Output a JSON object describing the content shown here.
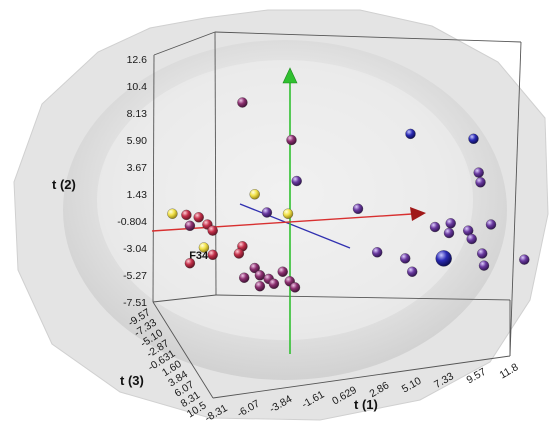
{
  "chart_data": {
    "type": "scatter",
    "projection": "3d",
    "axes": {
      "x": {
        "label": "t (1)",
        "ticks": [
          "-8.31",
          "-6.07",
          "-3.84",
          "-1.61",
          "0.629",
          "2.86",
          "5.10",
          "7.33",
          "9.57",
          "11.8"
        ]
      },
      "y": {
        "label": "t (2)",
        "ticks": [
          "-7.51",
          "-5.27",
          "-3.04",
          "-0.804",
          "1.43",
          "3.67",
          "5.90",
          "8.13",
          "10.4",
          "12.6"
        ]
      },
      "z": {
        "label": "t (3)",
        "ticks": [
          "-9.57",
          "-7.33",
          "-5.10",
          "-2.87",
          "-0.631",
          "1.60",
          "3.84",
          "6.07",
          "8.31",
          "10.5"
        ]
      }
    },
    "ellipsoid": true,
    "colors": {
      "yellow": "#f2e24a",
      "red": "#c4304a",
      "magenta": "#8c3070",
      "purple": "#6a3aa0",
      "blue": "#2b2bb5",
      "x_axis": "#d83030",
      "y_axis": "#30c030",
      "z_axis": "#3030b0"
    },
    "labels": [
      "F34"
    ],
    "points": [
      {
        "t1": -7.6,
        "t2": -0.2,
        "t3": 0.0,
        "color": "yellow"
      },
      {
        "t1": -6.8,
        "t2": -0.3,
        "t3": 0.0,
        "color": "red"
      },
      {
        "t1": -6.1,
        "t2": -0.5,
        "t3": 0.0,
        "color": "red"
      },
      {
        "t1": -6.6,
        "t2": -1.2,
        "t3": 0.0,
        "color": "magenta"
      },
      {
        "t1": -5.6,
        "t2": -1.1,
        "t3": 0.0,
        "color": "red"
      },
      {
        "t1": -5.3,
        "t2": -1.6,
        "t3": 0.0,
        "color": "red"
      },
      {
        "t1": -5.8,
        "t2": -3.0,
        "t3": 0.0,
        "color": "yellow"
      },
      {
        "t1": -5.3,
        "t2": -3.6,
        "t3": 0.0,
        "color": "red",
        "label": "F34"
      },
      {
        "t1": -6.6,
        "t2": -4.3,
        "t3": 0.0,
        "color": "red"
      },
      {
        "t1": -3.6,
        "t2": -2.9,
        "t3": 0.0,
        "color": "red"
      },
      {
        "t1": -3.8,
        "t2": -3.5,
        "t3": 0.0,
        "color": "red"
      },
      {
        "t1": -2.9,
        "t2": -4.7,
        "t3": 0.0,
        "color": "magenta"
      },
      {
        "t1": -3.5,
        "t2": -5.5,
        "t3": 0.0,
        "color": "magenta"
      },
      {
        "t1": -2.6,
        "t2": -5.3,
        "t3": 0.0,
        "color": "magenta"
      },
      {
        "t1": -2.1,
        "t2": -5.6,
        "t3": 0.0,
        "color": "magenta"
      },
      {
        "t1": -1.8,
        "t2": -6.0,
        "t3": 0.0,
        "color": "magenta"
      },
      {
        "t1": -2.6,
        "t2": -6.2,
        "t3": 0.0,
        "color": "magenta"
      },
      {
        "t1": -1.3,
        "t2": -5.0,
        "t3": 0.0,
        "color": "magenta"
      },
      {
        "t1": -0.9,
        "t2": -5.8,
        "t3": 0.0,
        "color": "magenta"
      },
      {
        "t1": -0.6,
        "t2": -6.3,
        "t3": 0.0,
        "color": "magenta"
      },
      {
        "t1": -2.9,
        "t2": 1.4,
        "t3": 0.0,
        "color": "yellow"
      },
      {
        "t1": -1.0,
        "t2": -0.2,
        "t3": 0.0,
        "color": "yellow"
      },
      {
        "t1": -2.2,
        "t2": -0.1,
        "t3": 0.0,
        "color": "purple"
      },
      {
        "t1": -3.6,
        "t2": 9.0,
        "t3": 0.0,
        "color": "magenta"
      },
      {
        "t1": -0.8,
        "t2": 5.9,
        "t3": 0.0,
        "color": "magenta"
      },
      {
        "t1": -0.5,
        "t2": 2.5,
        "t3": 0.0,
        "color": "purple"
      },
      {
        "t1": 3.0,
        "t2": 0.2,
        "t3": 0.0,
        "color": "purple"
      },
      {
        "t1": 6.0,
        "t2": 6.4,
        "t3": 0.0,
        "color": "blue"
      },
      {
        "t1": 9.6,
        "t2": 6.0,
        "t3": 0.0,
        "color": "blue"
      },
      {
        "t1": 9.9,
        "t2": 3.2,
        "t3": 0.0,
        "color": "purple"
      },
      {
        "t1": 10.0,
        "t2": 2.4,
        "t3": 0.0,
        "color": "purple"
      },
      {
        "t1": 7.4,
        "t2": -1.3,
        "t3": 0.0,
        "color": "purple"
      },
      {
        "t1": 8.3,
        "t2": -1.0,
        "t3": 0.0,
        "color": "purple"
      },
      {
        "t1": 8.2,
        "t2": -1.8,
        "t3": 0.0,
        "color": "purple"
      },
      {
        "t1": 9.3,
        "t2": -1.6,
        "t3": 0.0,
        "color": "purple"
      },
      {
        "t1": 9.5,
        "t2": -2.3,
        "t3": 0.0,
        "color": "purple"
      },
      {
        "t1": 10.6,
        "t2": -1.1,
        "t3": 0.0,
        "color": "purple"
      },
      {
        "t1": 4.1,
        "t2": -3.4,
        "t3": 0.0,
        "color": "purple"
      },
      {
        "t1": 5.7,
        "t2": -3.9,
        "t3": 0.0,
        "color": "purple"
      },
      {
        "t1": 6.1,
        "t2": -5.0,
        "t3": 0.0,
        "color": "purple"
      },
      {
        "t1": 7.9,
        "t2": -3.9,
        "t3": 0.0,
        "color": "blue",
        "size": 8
      },
      {
        "t1": 10.1,
        "t2": -3.5,
        "t3": 0.0,
        "color": "purple"
      },
      {
        "t1": 10.2,
        "t2": -4.5,
        "t3": 0.0,
        "color": "purple"
      },
      {
        "t1": 12.5,
        "t2": -4.0,
        "t3": 0.0,
        "color": "purple"
      }
    ]
  }
}
